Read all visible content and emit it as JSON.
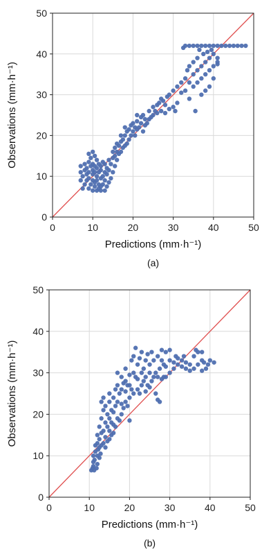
{
  "chart_data": [
    {
      "type": "scatter",
      "panel_label": "(a)",
      "xlabel": "Predictions (mm·h⁻¹)",
      "ylabel": "Observations (mm·h⁻¹)",
      "xlim": [
        0,
        50
      ],
      "ylim": [
        0,
        50
      ],
      "xticks": [
        0,
        10,
        20,
        30,
        40,
        50
      ],
      "yticks": [
        0,
        10,
        20,
        30,
        40,
        50
      ],
      "grid": true,
      "reference_line": {
        "x": [
          0,
          50
        ],
        "y": [
          0,
          50
        ],
        "color": "#e05050"
      },
      "point_color": "#4f6fb0",
      "points": [
        [
          7,
          9
        ],
        [
          7,
          11
        ],
        [
          7,
          12.5
        ],
        [
          7.5,
          7
        ],
        [
          7.5,
          10
        ],
        [
          8,
          8
        ],
        [
          8,
          11.5
        ],
        [
          8,
          13
        ],
        [
          8.5,
          9
        ],
        [
          8.5,
          10.5
        ],
        [
          8.5,
          12
        ],
        [
          9,
          7
        ],
        [
          9,
          9.5
        ],
        [
          9,
          11
        ],
        [
          9,
          13.5
        ],
        [
          9,
          15.5
        ],
        [
          9.5,
          8
        ],
        [
          9.5,
          12.5
        ],
        [
          9.5,
          14.5
        ],
        [
          10,
          6.5
        ],
        [
          10,
          9
        ],
        [
          10,
          10.5
        ],
        [
          10,
          11.5
        ],
        [
          10,
          13
        ],
        [
          10,
          16
        ],
        [
          10.5,
          7.5
        ],
        [
          10.5,
          8.5
        ],
        [
          10.5,
          11
        ],
        [
          10.5,
          12.5
        ],
        [
          10.5,
          15
        ],
        [
          11,
          6.5
        ],
        [
          11,
          9
        ],
        [
          11,
          10
        ],
        [
          11,
          12
        ],
        [
          11,
          14
        ],
        [
          11.5,
          7
        ],
        [
          11.5,
          8
        ],
        [
          11.5,
          11
        ],
        [
          11.5,
          13
        ],
        [
          12,
          6.5
        ],
        [
          12,
          7.5
        ],
        [
          12,
          9.5
        ],
        [
          12,
          11.5
        ],
        [
          12,
          12.5
        ],
        [
          12.5,
          8
        ],
        [
          12.5,
          10
        ],
        [
          12.5,
          13.5
        ],
        [
          13,
          6.5
        ],
        [
          13,
          9
        ],
        [
          13,
          11
        ],
        [
          13,
          13
        ],
        [
          13.5,
          7.5
        ],
        [
          13.5,
          10.5
        ],
        [
          13.5,
          12
        ],
        [
          14,
          8.5
        ],
        [
          14,
          11.5
        ],
        [
          14,
          14
        ],
        [
          14.5,
          9.5
        ],
        [
          14.5,
          13
        ],
        [
          15,
          11
        ],
        [
          15,
          14.5
        ],
        [
          15,
          16
        ],
        [
          15.5,
          12.5
        ],
        [
          15.5,
          15
        ],
        [
          15.5,
          17
        ],
        [
          16,
          14
        ],
        [
          16,
          16
        ],
        [
          16,
          18
        ],
        [
          16.5,
          15.5
        ],
        [
          16.5,
          17.5
        ],
        [
          17,
          16
        ],
        [
          17,
          18.5
        ],
        [
          17,
          20
        ],
        [
          17.5,
          17
        ],
        [
          17.5,
          19
        ],
        [
          18,
          17.5
        ],
        [
          18,
          20
        ],
        [
          18,
          22
        ],
        [
          18.5,
          18
        ],
        [
          18.5,
          21
        ],
        [
          19,
          19
        ],
        [
          19,
          21.5
        ],
        [
          19.5,
          20
        ],
        [
          19.5,
          22.5
        ],
        [
          20,
          21
        ],
        [
          20,
          23
        ],
        [
          20.5,
          20
        ],
        [
          20.5,
          22
        ],
        [
          21,
          21.5
        ],
        [
          21,
          23.5
        ],
        [
          21,
          25
        ],
        [
          21.5,
          22
        ],
        [
          22,
          23
        ],
        [
          22,
          24.5
        ],
        [
          22.5,
          21
        ],
        [
          22.5,
          25
        ],
        [
          23,
          22.5
        ],
        [
          23,
          24
        ],
        [
          23.5,
          23
        ],
        [
          24,
          24
        ],
        [
          24,
          26
        ],
        [
          24.5,
          24.5
        ],
        [
          25,
          25
        ],
        [
          25,
          27
        ],
        [
          25.5,
          26
        ],
        [
          26,
          25.5
        ],
        [
          26,
          27.5
        ],
        [
          26.5,
          28
        ],
        [
          27,
          26
        ],
        [
          27,
          29
        ],
        [
          27.5,
          28.5
        ],
        [
          28,
          25.5
        ],
        [
          28,
          27.5
        ],
        [
          28.5,
          29.5
        ],
        [
          29,
          26.5
        ],
        [
          29,
          30
        ],
        [
          30,
          27
        ],
        [
          30,
          31
        ],
        [
          30.5,
          26
        ],
        [
          31,
          28
        ],
        [
          31,
          32
        ],
        [
          32,
          30.5
        ],
        [
          32,
          33
        ],
        [
          33,
          31
        ],
        [
          33,
          34
        ],
        [
          33.5,
          36
        ],
        [
          34,
          29
        ],
        [
          34,
          33
        ],
        [
          34,
          37
        ],
        [
          35,
          32
        ],
        [
          35,
          35
        ],
        [
          35,
          38
        ],
        [
          35.5,
          26
        ],
        [
          36,
          33
        ],
        [
          36,
          36
        ],
        [
          36,
          39
        ],
        [
          37,
          30
        ],
        [
          37,
          34
        ],
        [
          37,
          37
        ],
        [
          37.5,
          40
        ],
        [
          38,
          31
        ],
        [
          38,
          35
        ],
        [
          38,
          38
        ],
        [
          38.5,
          40.5
        ],
        [
          39,
          32
        ],
        [
          39,
          36
        ],
        [
          39,
          39
        ],
        [
          40,
          34
        ],
        [
          40,
          37
        ],
        [
          40,
          40
        ],
        [
          41,
          38
        ],
        [
          41,
          42
        ],
        [
          42,
          42
        ],
        [
          43,
          42
        ],
        [
          44,
          42
        ],
        [
          45,
          42
        ],
        [
          46,
          42
        ],
        [
          47,
          42
        ],
        [
          48,
          42
        ],
        [
          33,
          42
        ],
        [
          34,
          42
        ],
        [
          35,
          42
        ],
        [
          36,
          42
        ],
        [
          37,
          42
        ],
        [
          38,
          42
        ],
        [
          39,
          42
        ],
        [
          40,
          42
        ],
        [
          32.5,
          41.5
        ],
        [
          36.5,
          41
        ],
        [
          39.5,
          41
        ],
        [
          41,
          37.5
        ],
        [
          41,
          39
        ]
      ]
    },
    {
      "type": "scatter",
      "panel_label": "(b)",
      "xlabel": "Predictions (mm·h⁻¹)",
      "ylabel": "Observations (mm·h⁻¹)",
      "xlim": [
        0,
        50
      ],
      "ylim": [
        0,
        50
      ],
      "xticks": [
        0,
        10,
        20,
        30,
        40,
        50
      ],
      "yticks": [
        0,
        10,
        20,
        30,
        40,
        50
      ],
      "grid": true,
      "reference_line": {
        "x": [
          0,
          50
        ],
        "y": [
          0,
          50
        ],
        "color": "#e05050"
      },
      "point_color": "#4f6fb0",
      "points": [
        [
          10.5,
          6.5
        ],
        [
          10.8,
          7
        ],
        [
          11,
          7.5
        ],
        [
          11,
          8.5
        ],
        [
          11,
          10
        ],
        [
          11.2,
          6.5
        ],
        [
          11.3,
          9
        ],
        [
          11.5,
          11
        ],
        [
          11.5,
          12.5
        ],
        [
          11.8,
          7
        ],
        [
          12,
          8
        ],
        [
          12,
          10
        ],
        [
          12,
          13
        ],
        [
          12,
          15
        ],
        [
          12.2,
          11.5
        ],
        [
          12.5,
          9.5
        ],
        [
          12.5,
          12
        ],
        [
          12.5,
          14
        ],
        [
          12.5,
          17
        ],
        [
          12.8,
          10.5
        ],
        [
          13,
          12.5
        ],
        [
          13,
          15.5
        ],
        [
          13,
          19
        ],
        [
          13,
          23
        ],
        [
          13.5,
          13
        ],
        [
          13.5,
          16
        ],
        [
          13.5,
          21
        ],
        [
          13.5,
          24
        ],
        [
          14,
          12
        ],
        [
          14,
          14.5
        ],
        [
          14,
          18
        ],
        [
          14,
          22
        ],
        [
          14.5,
          13.5
        ],
        [
          14.5,
          17
        ],
        [
          14.5,
          20
        ],
        [
          15,
          14
        ],
        [
          15,
          16
        ],
        [
          15,
          19
        ],
        [
          15,
          23
        ],
        [
          15,
          25
        ],
        [
          15.5,
          15
        ],
        [
          15.5,
          18
        ],
        [
          15.5,
          21
        ],
        [
          16,
          15.5
        ],
        [
          16,
          17.5
        ],
        [
          16,
          20.5
        ],
        [
          16,
          24
        ],
        [
          16.5,
          17
        ],
        [
          16.5,
          22
        ],
        [
          16.5,
          26
        ],
        [
          17,
          19
        ],
        [
          17,
          23
        ],
        [
          17,
          27
        ],
        [
          17,
          30
        ],
        [
          17.5,
          18.5
        ],
        [
          17.5,
          25
        ],
        [
          18,
          20
        ],
        [
          18,
          22.5
        ],
        [
          18,
          26
        ],
        [
          18,
          29
        ],
        [
          18.5,
          21.5
        ],
        [
          18.5,
          27.5
        ],
        [
          19,
          23
        ],
        [
          19,
          25.5
        ],
        [
          19,
          28
        ],
        [
          19,
          31
        ],
        [
          19.5,
          22
        ],
        [
          19.5,
          27
        ],
        [
          20,
          18.5
        ],
        [
          20,
          24
        ],
        [
          20,
          27
        ],
        [
          20,
          29.5
        ],
        [
          20.5,
          26
        ],
        [
          20.5,
          33
        ],
        [
          21,
          25
        ],
        [
          21,
          30
        ],
        [
          21,
          34
        ],
        [
          21.5,
          29
        ],
        [
          21.5,
          36
        ],
        [
          22,
          26
        ],
        [
          22,
          28.5
        ],
        [
          22,
          32
        ],
        [
          22.5,
          25
        ],
        [
          22.5,
          33.5
        ],
        [
          23,
          27
        ],
        [
          23,
          30
        ],
        [
          23,
          35
        ],
        [
          23.5,
          28
        ],
        [
          23.5,
          31
        ],
        [
          24,
          25.5
        ],
        [
          24,
          29
        ],
        [
          24,
          33
        ],
        [
          24.5,
          27
        ],
        [
          24.5,
          34.5
        ],
        [
          25,
          26.5
        ],
        [
          25,
          30
        ],
        [
          25,
          32
        ],
        [
          25.5,
          28
        ],
        [
          25.5,
          35
        ],
        [
          26,
          29
        ],
        [
          26,
          33
        ],
        [
          26.5,
          30
        ],
        [
          26.5,
          25
        ],
        [
          27,
          23.5
        ],
        [
          27,
          29
        ],
        [
          27,
          34
        ],
        [
          27.5,
          23
        ],
        [
          27.5,
          31
        ],
        [
          28,
          28.5
        ],
        [
          28,
          33
        ],
        [
          28,
          35.5
        ],
        [
          28.5,
          29
        ],
        [
          28.5,
          32
        ],
        [
          29,
          29
        ],
        [
          29,
          31.5
        ],
        [
          29,
          35
        ],
        [
          30,
          30
        ],
        [
          30,
          33
        ],
        [
          30,
          35.5
        ],
        [
          31,
          31
        ],
        [
          31,
          32.5
        ],
        [
          31.5,
          34
        ],
        [
          32,
          32
        ],
        [
          32,
          33.5
        ],
        [
          33,
          31.5
        ],
        [
          33,
          33
        ],
        [
          33.5,
          34
        ],
        [
          34,
          31
        ],
        [
          34,
          32.5
        ],
        [
          35,
          30.5
        ],
        [
          35,
          32
        ],
        [
          36,
          31
        ],
        [
          36,
          34
        ],
        [
          37,
          35
        ],
        [
          37,
          32
        ],
        [
          38,
          33
        ],
        [
          38,
          30.5
        ],
        [
          38.5,
          32.5
        ],
        [
          39,
          31
        ],
        [
          39.5,
          32
        ],
        [
          40,
          33
        ],
        [
          41,
          32.5
        ],
        [
          36.5,
          35.5
        ],
        [
          38,
          35
        ]
      ]
    }
  ]
}
